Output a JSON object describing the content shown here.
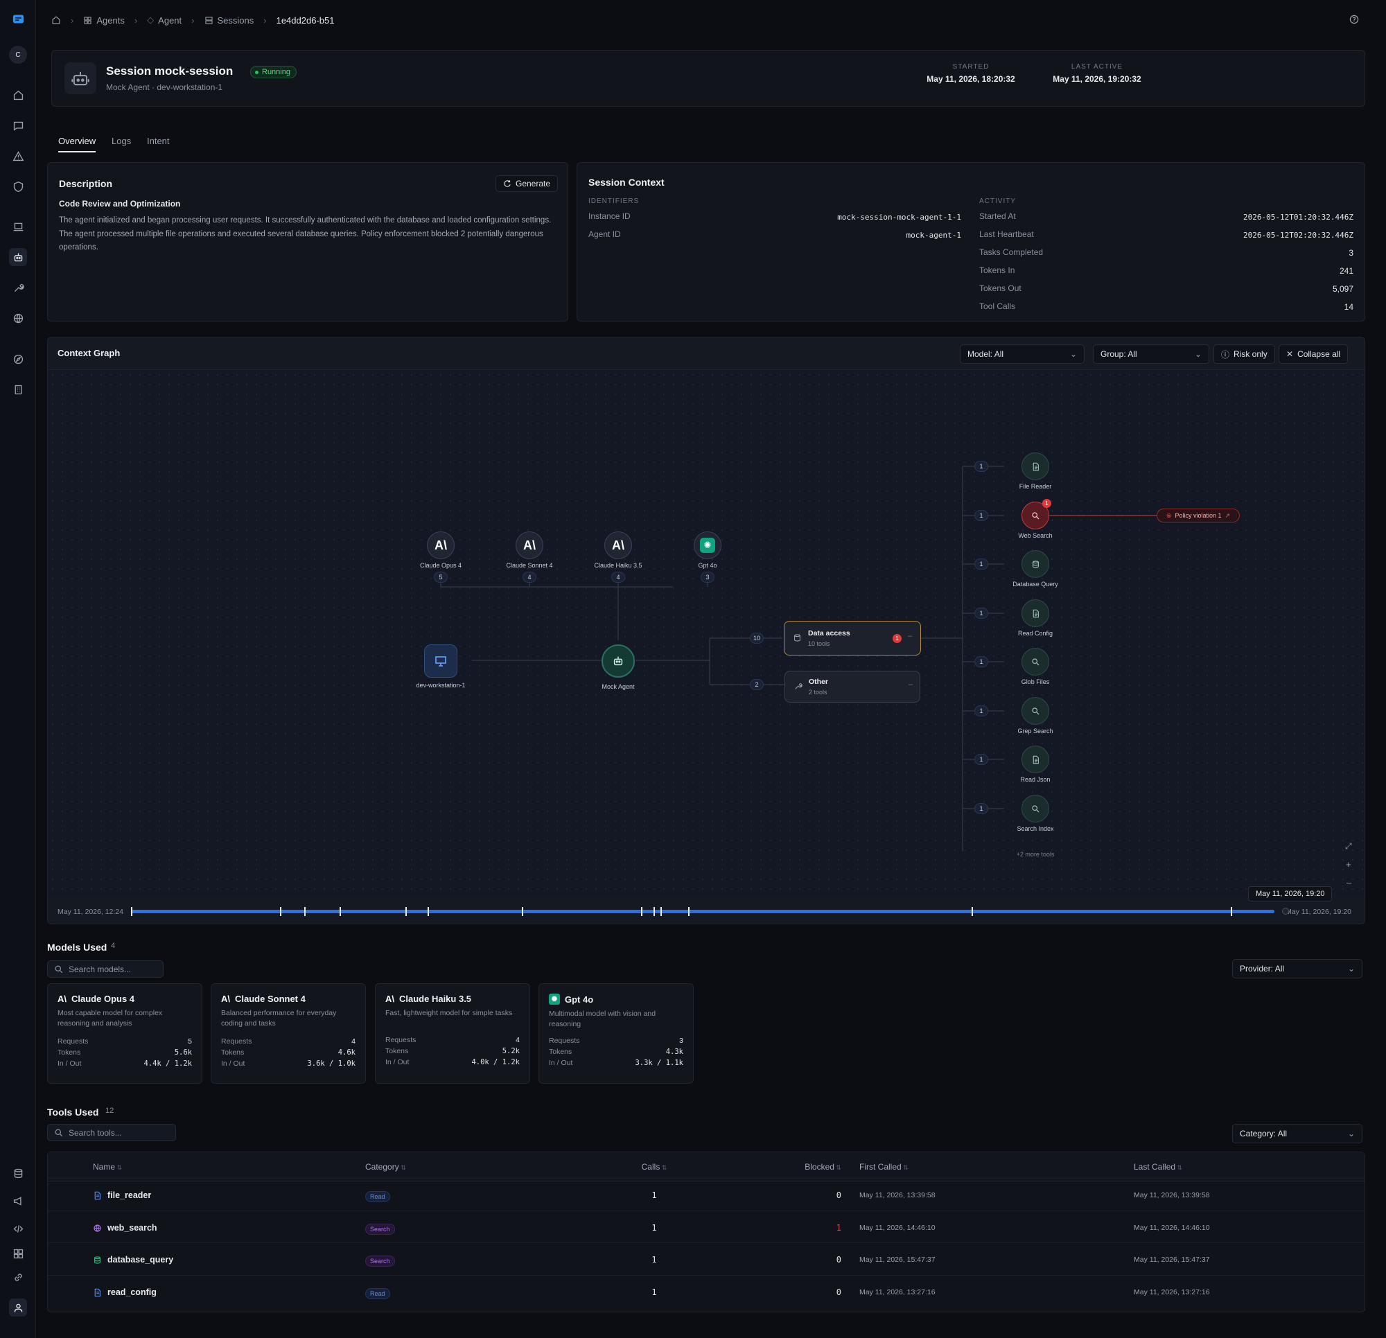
{
  "breadcrumb": {
    "items": [
      "Agents",
      "Agent",
      "Sessions",
      "1e4dd2d6-b51"
    ]
  },
  "rail": {
    "avatar": "C"
  },
  "session": {
    "title": "Session mock-session",
    "status": "Running",
    "subtitle": "Mock Agent · dev-workstation-1",
    "started_label": "STARTED",
    "started_value": "May 11, 2026, 18:20:32",
    "last_active_label": "LAST ACTIVE",
    "last_active_value": "May 11, 2026, 19:20:32"
  },
  "tabs": [
    {
      "label": "Overview"
    },
    {
      "label": "Logs"
    },
    {
      "label": "Intent"
    }
  ],
  "description": {
    "title": "Description",
    "generate_label": "Generate",
    "heading": "Code Review and Optimization",
    "body": "The agent initialized and began processing user requests. It successfully authenticated with the database and loaded configuration settings. The agent processed multiple file operations and executed several database queries. Policy enforcement blocked 2 potentially dangerous operations."
  },
  "context": {
    "title": "Session Context",
    "identifiers_label": "IDENTIFIERS",
    "identifiers": [
      {
        "label": "Instance ID",
        "value": "mock-session-mock-agent-1-1"
      },
      {
        "label": "Agent ID",
        "value": "mock-agent-1"
      }
    ],
    "activity_label": "ACTIVITY",
    "activity": [
      {
        "label": "Started At",
        "value": "2026-05-12T01:20:32.446Z"
      },
      {
        "label": "Last Heartbeat",
        "value": "2026-05-12T02:20:32.446Z"
      },
      {
        "label": "Tasks Completed",
        "value": "3"
      },
      {
        "label": "Tokens In",
        "value": "241"
      },
      {
        "label": "Tokens Out",
        "value": "5,097"
      },
      {
        "label": "Tool Calls",
        "value": "14"
      }
    ]
  },
  "graph": {
    "title": "Context Graph",
    "model_filter": "Model: All",
    "group_filter": "Group: All",
    "risk_only": "Risk only",
    "collapse_all": "Collapse all",
    "models": [
      {
        "name": "Claude Opus 4",
        "count": "5"
      },
      {
        "name": "Claude Sonnet 4",
        "count": "4"
      },
      {
        "name": "Claude Haiku 3.5",
        "count": "4"
      },
      {
        "name": "Gpt 4o",
        "count": "3"
      }
    ],
    "workstation": "dev-workstation-1",
    "agent": "Mock Agent",
    "groups": [
      {
        "name": "Data access",
        "sub": "10 tools",
        "count": "10",
        "alert": "1"
      },
      {
        "name": "Other",
        "sub": "2 tools",
        "count": "2"
      }
    ],
    "tools": [
      {
        "name": "File Reader",
        "count": "1"
      },
      {
        "name": "Web Search",
        "count": "1",
        "alert": "1"
      },
      {
        "name": "Database Query",
        "count": "1"
      },
      {
        "name": "Read Config",
        "count": "1"
      },
      {
        "name": "Glob Files",
        "count": "1"
      },
      {
        "name": "Grep Search",
        "count": "1"
      },
      {
        "name": "Read Json",
        "count": "1"
      },
      {
        "name": "Search Index",
        "count": "1"
      }
    ],
    "more_tools": "+2 more tools",
    "policy": "Policy violation 1",
    "timeline_start": "May 11, 2026, 12:24",
    "timeline_end": "May 11, 2026, 19:20",
    "timeline_tooltip": "May 11, 2026, 19:20"
  },
  "models_used": {
    "title": "Models Used",
    "count": "4",
    "search_placeholder": "Search models...",
    "provider_filter": "Provider: All",
    "cards": [
      {
        "name": "Claude Opus 4",
        "desc": "Most capable model for complex reasoning and analysis",
        "requests": "5",
        "tokens": "5.6k",
        "inout": "4.4k / 1.2k"
      },
      {
        "name": "Claude Sonnet 4",
        "desc": "Balanced performance for everyday coding and tasks",
        "requests": "4",
        "tokens": "4.6k",
        "inout": "3.6k / 1.0k"
      },
      {
        "name": "Claude Haiku 3.5",
        "desc": "Fast, lightweight model for simple tasks",
        "requests": "4",
        "tokens": "5.2k",
        "inout": "4.0k / 1.2k"
      },
      {
        "name": "Gpt 4o",
        "desc": "Multimodal model with vision and reasoning",
        "requests": "3",
        "tokens": "4.3k",
        "inout": "3.3k / 1.1k"
      }
    ],
    "labels": {
      "requests": "Requests",
      "tokens": "Tokens",
      "inout": "In / Out"
    }
  },
  "tools_used": {
    "title": "Tools Used",
    "count": "12",
    "search_placeholder": "Search tools...",
    "category_filter": "Category: All",
    "columns": [
      "Name",
      "Category",
      "Calls",
      "Blocked",
      "First Called",
      "Last Called"
    ],
    "rows": [
      {
        "name": "file_reader",
        "category": "Read",
        "calls": "1",
        "blocked": "0",
        "first": "May 11, 2026, 13:39:58",
        "last": "May 11, 2026, 13:39:58"
      },
      {
        "name": "web_search",
        "category": "Search",
        "calls": "1",
        "blocked": "1",
        "first": "May 11, 2026, 14:46:10",
        "last": "May 11, 2026, 14:46:10"
      },
      {
        "name": "database_query",
        "category": "Search",
        "calls": "1",
        "blocked": "0",
        "first": "May 11, 2026, 15:47:37",
        "last": "May 11, 2026, 15:47:37"
      },
      {
        "name": "read_config",
        "category": "Read",
        "calls": "1",
        "blocked": "0",
        "first": "May 11, 2026, 13:27:16",
        "last": "May 11, 2026, 13:27:16"
      }
    ]
  },
  "colors": {
    "accent": "#3b82f6",
    "running": "#22c55e",
    "danger": "#ef4444",
    "anthropic": "#ffffff",
    "openai": "#10a37f"
  }
}
